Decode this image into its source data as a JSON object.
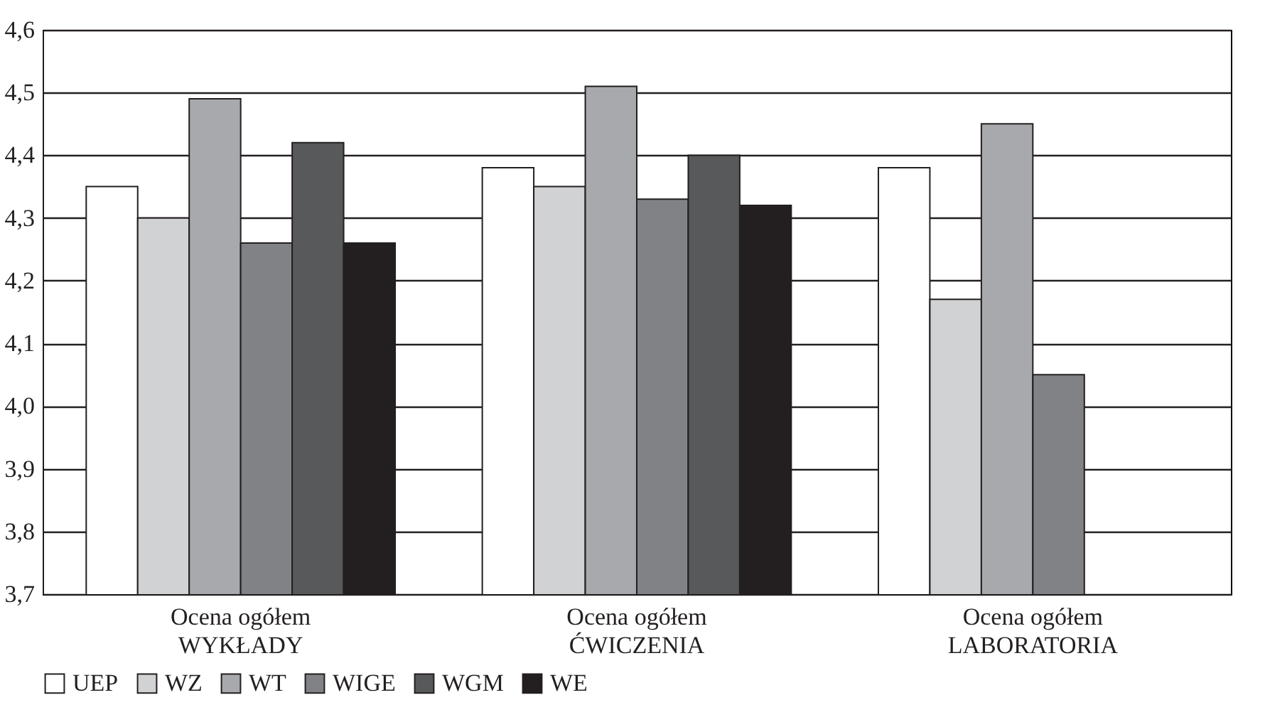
{
  "chart_data": {
    "type": "bar",
    "categories": [
      "Ocena ogółem\nWYKŁADY",
      "Ocena ogółem\nĆWICZENIA",
      "Ocena ogółem\nLABORATORIA"
    ],
    "series": [
      {
        "name": "UEP",
        "color": "#ffffff",
        "values": [
          4.35,
          4.38,
          4.38
        ]
      },
      {
        "name": "WZ",
        "color": "#d1d2d4",
        "values": [
          4.3,
          4.35,
          4.17
        ]
      },
      {
        "name": "WT",
        "color": "#a8a9ac",
        "values": [
          4.49,
          4.51,
          4.45
        ]
      },
      {
        "name": "WIGE",
        "color": "#808285",
        "values": [
          4.26,
          4.33,
          4.05
        ]
      },
      {
        "name": "WGM",
        "color": "#58595b",
        "values": [
          4.42,
          4.4,
          null
        ]
      },
      {
        "name": "WE",
        "color": "#231f20",
        "values": [
          4.26,
          4.32,
          null
        ]
      }
    ],
    "ylim": [
      3.7,
      4.6
    ],
    "yticks": [
      {
        "value": 3.7,
        "label": "3,7"
      },
      {
        "value": 3.8,
        "label": "3,8"
      },
      {
        "value": 3.9,
        "label": "3,9"
      },
      {
        "value": 4.0,
        "label": "4,0"
      },
      {
        "value": 4.1,
        "label": "4,1"
      },
      {
        "value": 4.2,
        "label": "4,2"
      },
      {
        "value": 4.3,
        "label": "4,3"
      },
      {
        "value": 4.4,
        "label": "4,4"
      },
      {
        "value": 4.5,
        "label": "4,5"
      },
      {
        "value": 4.6,
        "label": "4,6"
      }
    ],
    "grid": "y",
    "legend": "bottom"
  }
}
